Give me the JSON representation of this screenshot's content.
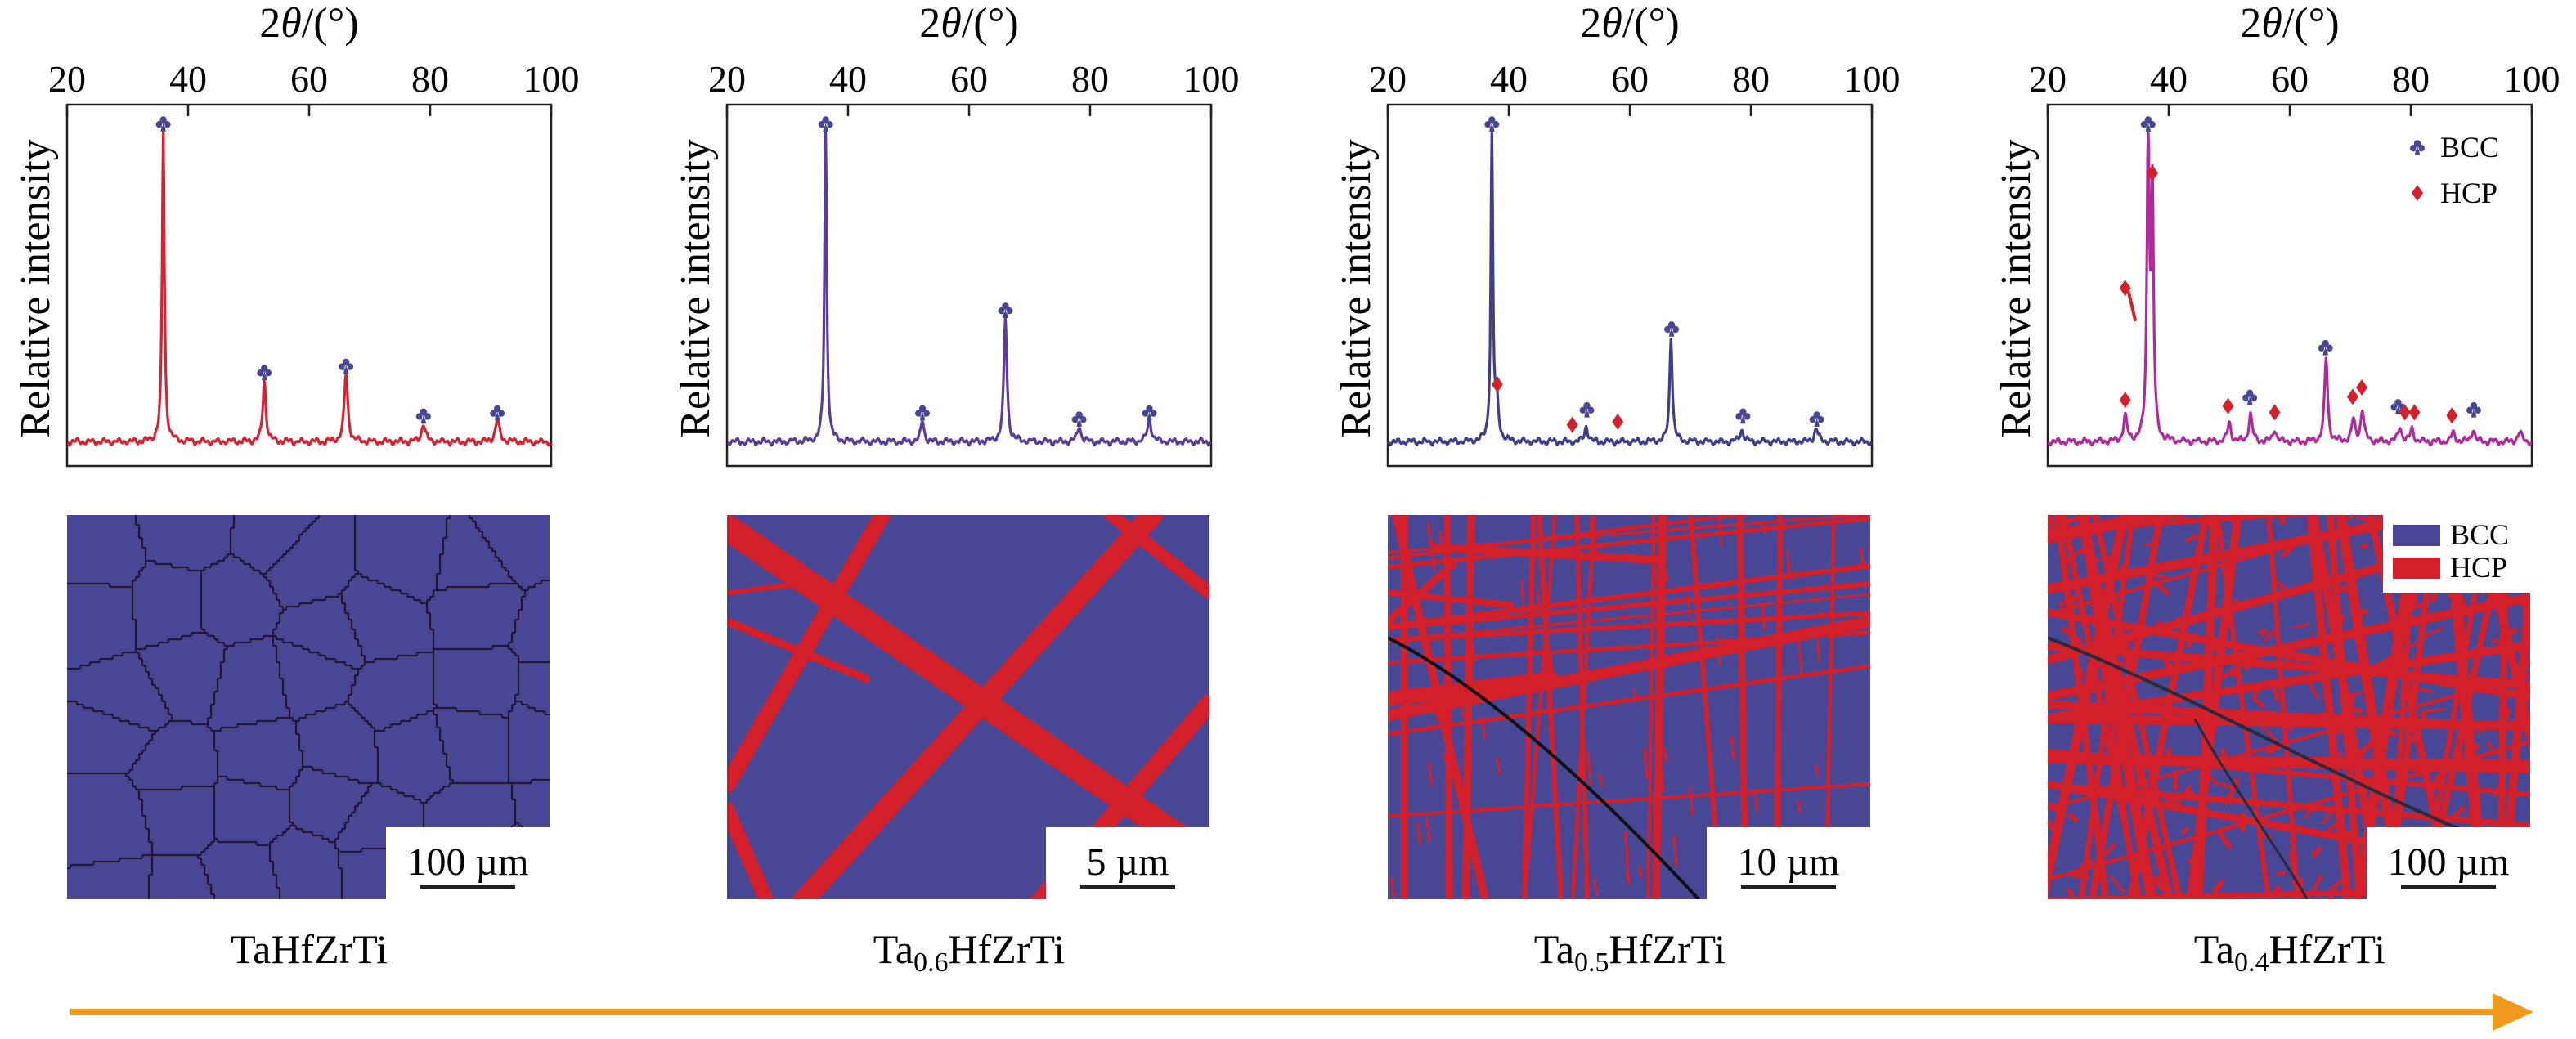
{
  "colors": {
    "bcc": "#474795",
    "hcp": "#d4202a",
    "arrow": "#f0991b",
    "grain": "#241633",
    "frame": "#222222"
  },
  "chart_data": [
    {
      "type": "line",
      "composition": "TaHfZrTi",
      "composition_parts": [
        "TaHfZrTi",
        "",
        ""
      ],
      "xlabel": "2θ/(°)",
      "ylabel": "Relative intensity",
      "xlim": [
        20,
        100
      ],
      "xticks": [
        "20",
        "40",
        "60",
        "80",
        "100"
      ],
      "line_color": "#d92231",
      "peaks": [
        [
          35.9,
          1.0,
          0.33
        ],
        [
          52.6,
          0.2,
          0.45
        ],
        [
          66.1,
          0.22,
          0.5
        ],
        [
          78.9,
          0.06,
          0.55
        ],
        [
          91.1,
          0.07,
          0.6
        ]
      ],
      "markers": [
        {
          "phase": "BCC",
          "x": 35.9,
          "y": 1.0
        },
        {
          "phase": "BCC",
          "x": 52.6,
          "y": 0.2
        },
        {
          "phase": "BCC",
          "x": 66.1,
          "y": 0.22
        },
        {
          "phase": "BCC",
          "x": 78.9,
          "y": 0.06
        },
        {
          "phase": "BCC",
          "x": 91.1,
          "y": 0.07
        }
      ],
      "micrograph": {
        "kind": "grains",
        "scale_bar": "100 µm"
      }
    },
    {
      "type": "line",
      "composition": "Ta0.6HfZrTi",
      "composition_parts": [
        "Ta",
        "0.6",
        "HfZrTi"
      ],
      "xlabel": "2θ/(°)",
      "ylabel": "Relative intensity",
      "xlim": [
        20,
        100
      ],
      "xticks": [
        "20",
        "40",
        "60",
        "80",
        "100"
      ],
      "line_color": "#5a3c9a",
      "peaks": [
        [
          36.3,
          1.0,
          0.33
        ],
        [
          52.3,
          0.07,
          0.45
        ],
        [
          66.0,
          0.4,
          0.45
        ],
        [
          78.2,
          0.05,
          0.55
        ],
        [
          89.8,
          0.07,
          0.6
        ]
      ],
      "markers": [
        {
          "phase": "BCC",
          "x": 36.3,
          "y": 1.0
        },
        {
          "phase": "BCC",
          "x": 52.3,
          "y": 0.07
        },
        {
          "phase": "BCC",
          "x": 66.0,
          "y": 0.4
        },
        {
          "phase": "BCC",
          "x": 78.2,
          "y": 0.05
        },
        {
          "phase": "BCC",
          "x": 89.8,
          "y": 0.07
        }
      ],
      "micrograph": {
        "kind": "plates_few",
        "scale_bar": "5 µm"
      }
    },
    {
      "type": "line",
      "composition": "Ta0.5HfZrTi",
      "composition_parts": [
        "Ta",
        "0.5",
        "HfZrTi"
      ],
      "xlabel": "2θ/(°)",
      "ylabel": "Relative intensity",
      "xlim": [
        20,
        100
      ],
      "xticks": [
        "20",
        "40",
        "60",
        "80",
        "100"
      ],
      "line_color": "#3c3f8c",
      "peaks": [
        [
          37.2,
          1.0,
          0.3
        ],
        [
          38.0,
          0.12,
          0.5
        ],
        [
          52.8,
          0.05,
          0.5
        ],
        [
          66.8,
          0.34,
          0.4
        ],
        [
          78.5,
          0.04,
          0.55
        ],
        [
          90.8,
          0.04,
          0.6
        ]
      ],
      "markers": [
        {
          "phase": "BCC",
          "x": 37.2,
          "y": 1.0
        },
        {
          "phase": "HCP",
          "x": 38.1,
          "y": 0.16
        },
        {
          "phase": "BCC",
          "x": 52.9,
          "y": 0.08
        },
        {
          "phase": "HCP",
          "x": 50.5,
          "y": 0.03
        },
        {
          "phase": "HCP",
          "x": 58.0,
          "y": 0.04
        },
        {
          "phase": "BCC",
          "x": 66.9,
          "y": 0.34
        },
        {
          "phase": "BCC",
          "x": 78.7,
          "y": 0.06
        },
        {
          "phase": "BCC",
          "x": 90.9,
          "y": 0.05
        }
      ],
      "micrograph": {
        "kind": "plates_medium",
        "scale_bar": "10 µm"
      }
    },
    {
      "type": "line",
      "composition": "Ta0.4HfZrTi",
      "composition_parts": [
        "Ta",
        "0.4",
        "HfZrTi"
      ],
      "xlabel": "2θ/(°)",
      "ylabel": "Relative intensity",
      "xlim": [
        20,
        100
      ],
      "xticks": [
        "20",
        "40",
        "60",
        "80",
        "100"
      ],
      "line_color": "#b02a9c",
      "peaks": [
        [
          32.8,
          0.08,
          0.5
        ],
        [
          36.6,
          1.0,
          0.35
        ],
        [
          37.3,
          0.78,
          0.35
        ],
        [
          50.0,
          0.06,
          0.5
        ],
        [
          53.5,
          0.09,
          0.5
        ],
        [
          57.5,
          0.04,
          0.5
        ],
        [
          66.0,
          0.27,
          0.45
        ],
        [
          70.5,
          0.07,
          0.5
        ],
        [
          72.0,
          0.1,
          0.5
        ],
        [
          78.2,
          0.05,
          0.5
        ],
        [
          80.2,
          0.04,
          0.5
        ],
        [
          87.0,
          0.03,
          0.5
        ],
        [
          90.3,
          0.04,
          0.5
        ],
        [
          98.0,
          0.03,
          0.6
        ]
      ],
      "markers": [
        {
          "phase": "BCC",
          "x": 36.6,
          "y": 1.0
        },
        {
          "phase": "HCP",
          "x": 37.3,
          "y": 0.84
        },
        {
          "phase": "HCP",
          "x": 32.8,
          "y": 0.47
        },
        {
          "phase": "HCP",
          "x": 32.8,
          "y": 0.11
        },
        {
          "phase": "HCP",
          "x": 49.8,
          "y": 0.09
        },
        {
          "phase": "BCC",
          "x": 53.4,
          "y": 0.12
        },
        {
          "phase": "HCP",
          "x": 57.5,
          "y": 0.07
        },
        {
          "phase": "BCC",
          "x": 65.9,
          "y": 0.28
        },
        {
          "phase": "HCP",
          "x": 70.4,
          "y": 0.12
        },
        {
          "phase": "HCP",
          "x": 71.9,
          "y": 0.15
        },
        {
          "phase": "BCC",
          "x": 77.9,
          "y": 0.09
        },
        {
          "phase": "HCP",
          "x": 79.0,
          "y": 0.07
        },
        {
          "phase": "HCP",
          "x": 80.6,
          "y": 0.07
        },
        {
          "phase": "HCP",
          "x": 86.8,
          "y": 0.06
        },
        {
          "phase": "BCC",
          "x": 90.4,
          "y": 0.08
        }
      ],
      "legend": {
        "location": "top-right",
        "entries": [
          "BCC",
          "HCP"
        ]
      },
      "micrograph": {
        "kind": "plates_dense",
        "scale_bar": "100 µm",
        "legend": [
          "BCC",
          "HCP"
        ]
      }
    }
  ]
}
